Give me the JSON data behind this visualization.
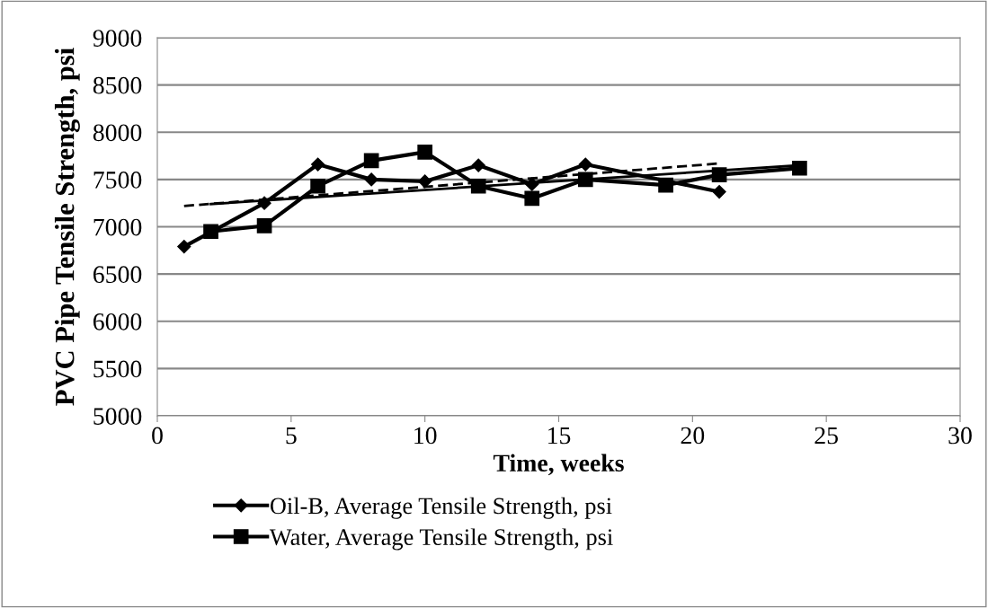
{
  "chart_data": {
    "type": "line",
    "xlabel": "Time, weeks",
    "ylabel": "PVC Pipe Tensile Strength, psi",
    "xlim": [
      0,
      30
    ],
    "xticks": [
      0,
      5,
      10,
      15,
      20,
      25,
      30
    ],
    "ylim": [
      5000,
      9000
    ],
    "yticks": [
      5000,
      5500,
      6000,
      6500,
      7000,
      7500,
      8000,
      8500,
      9000
    ],
    "grid": "y",
    "legend": "bottom",
    "series": [
      {
        "name": "Oil-B, Average Tensile Strength, psi",
        "color": "#000000",
        "marker": "diamond",
        "x": [
          1,
          4,
          6,
          8,
          10,
          12,
          14,
          16,
          21
        ],
        "values": [
          6790,
          7250,
          7660,
          7500,
          7480,
          7650,
          7450,
          7660,
          7370
        ]
      },
      {
        "name": "Water, Average Tensile Strength, psi",
        "color": "#000000",
        "marker": "square",
        "x": [
          2,
          4,
          6,
          8,
          10,
          12,
          14,
          16,
          19,
          21,
          24
        ],
        "values": [
          6950,
          7010,
          7430,
          7700,
          7790,
          7430,
          7300,
          7500,
          7440,
          7550,
          7620
        ]
      },
      {
        "color": "#000000",
        "marker": "none",
        "line_style": "dashed",
        "x": [
          1,
          21
        ],
        "values": [
          7220,
          7670
        ]
      },
      {
        "color": "#000000",
        "marker": "none",
        "line_style": "solid",
        "x": [
          2,
          24
        ],
        "values": [
          7240,
          7650
        ]
      }
    ]
  }
}
